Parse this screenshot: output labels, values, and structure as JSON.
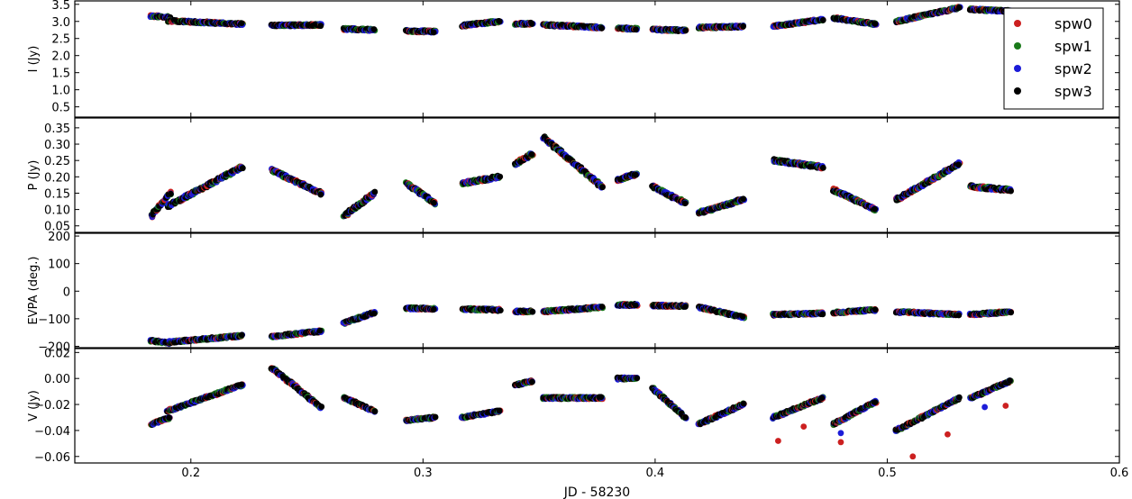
{
  "chart_data": {
    "type": "scatter",
    "xlabel": "JD - 58230",
    "xlim": [
      0.15,
      0.6
    ],
    "x_ticks": [
      "0.2",
      "0.3",
      "0.4",
      "0.5",
      "0.6"
    ],
    "legend": {
      "placement": "top-right",
      "entries": [
        {
          "name": "spw0",
          "color": "#cc2020"
        },
        {
          "name": "spw1",
          "color": "#1a7a1a"
        },
        {
          "name": "spw2",
          "color": "#1c1cd8"
        },
        {
          "name": "spw3",
          "color": "#000000"
        }
      ]
    },
    "panels": [
      {
        "ylabel": "I (Jy)",
        "ylim": [
          0.2,
          3.6
        ],
        "y_ticks": [
          "0.5",
          "1.0",
          "1.5",
          "2.0",
          "2.5",
          "3.0",
          "3.5"
        ],
        "segments": [
          {
            "x": [
              0.183,
              0.191
            ],
            "y": [
              3.16,
              3.12
            ]
          },
          {
            "x": [
              0.19,
              0.222
            ],
            "y": [
              3.02,
              2.92
            ]
          },
          {
            "x": [
              0.235,
              0.256
            ],
            "y": [
              2.88,
              2.9
            ]
          },
          {
            "x": [
              0.266,
              0.279
            ],
            "y": [
              2.78,
              2.75
            ]
          },
          {
            "x": [
              0.293,
              0.305
            ],
            "y": [
              2.72,
              2.7
            ]
          },
          {
            "x": [
              0.317,
              0.333
            ],
            "y": [
              2.88,
              3.0
            ]
          },
          {
            "x": [
              0.34,
              0.347
            ],
            "y": [
              2.92,
              2.94
            ]
          },
          {
            "x": [
              0.352,
              0.377
            ],
            "y": [
              2.9,
              2.82
            ]
          },
          {
            "x": [
              0.384,
              0.392
            ],
            "y": [
              2.8,
              2.78
            ]
          },
          {
            "x": [
              0.399,
              0.413
            ],
            "y": [
              2.76,
              2.74
            ]
          },
          {
            "x": [
              0.419,
              0.438
            ],
            "y": [
              2.82,
              2.85
            ]
          },
          {
            "x": [
              0.451,
              0.472
            ],
            "y": [
              2.86,
              3.05
            ]
          },
          {
            "x": [
              0.477,
              0.495
            ],
            "y": [
              3.1,
              2.92
            ]
          },
          {
            "x": [
              0.504,
              0.531
            ],
            "y": [
              3.0,
              3.4
            ]
          },
          {
            "x": [
              0.536,
              0.553
            ],
            "y": [
              3.35,
              3.3
            ]
          }
        ]
      },
      {
        "ylabel": "P (Jy)",
        "ylim": [
          0.03,
          0.38
        ],
        "y_ticks": [
          "0.05",
          "0.10",
          "0.15",
          "0.20",
          "0.25",
          "0.30",
          "0.35"
        ],
        "segments": [
          {
            "x": [
              0.183,
              0.191
            ],
            "y": [
              0.08,
              0.15
            ]
          },
          {
            "x": [
              0.19,
              0.222
            ],
            "y": [
              0.11,
              0.23
            ]
          },
          {
            "x": [
              0.235,
              0.256
            ],
            "y": [
              0.22,
              0.15
            ]
          },
          {
            "x": [
              0.266,
              0.279
            ],
            "y": [
              0.08,
              0.15
            ]
          },
          {
            "x": [
              0.293,
              0.305
            ],
            "y": [
              0.18,
              0.12
            ]
          },
          {
            "x": [
              0.317,
              0.333
            ],
            "y": [
              0.18,
              0.2
            ]
          },
          {
            "x": [
              0.34,
              0.347
            ],
            "y": [
              0.24,
              0.27
            ]
          },
          {
            "x": [
              0.352,
              0.377
            ],
            "y": [
              0.32,
              0.17
            ]
          },
          {
            "x": [
              0.384,
              0.392
            ],
            "y": [
              0.19,
              0.21
            ]
          },
          {
            "x": [
              0.399,
              0.413
            ],
            "y": [
              0.17,
              0.12
            ]
          },
          {
            "x": [
              0.419,
              0.438
            ],
            "y": [
              0.09,
              0.13
            ]
          },
          {
            "x": [
              0.451,
              0.472
            ],
            "y": [
              0.25,
              0.23
            ]
          },
          {
            "x": [
              0.477,
              0.495
            ],
            "y": [
              0.16,
              0.1
            ]
          },
          {
            "x": [
              0.504,
              0.531
            ],
            "y": [
              0.13,
              0.24
            ]
          },
          {
            "x": [
              0.536,
              0.553
            ],
            "y": [
              0.17,
              0.16
            ]
          }
        ]
      },
      {
        "ylabel": "EVPA (deg.)",
        "ylim": [
          -205,
          210
        ],
        "y_ticks": [
          "−200",
          "−100",
          "0",
          "100",
          "200"
        ],
        "segments": [
          {
            "x": [
              0.183,
              0.191
            ],
            "y": [
              -180,
              -188
            ]
          },
          {
            "x": [
              0.19,
              0.222
            ],
            "y": [
              -185,
              -162
            ]
          },
          {
            "x": [
              0.235,
              0.256
            ],
            "y": [
              -165,
              -145
            ]
          },
          {
            "x": [
              0.266,
              0.279
            ],
            "y": [
              -115,
              -78
            ]
          },
          {
            "x": [
              0.293,
              0.305
            ],
            "y": [
              -62,
              -64
            ]
          },
          {
            "x": [
              0.317,
              0.333
            ],
            "y": [
              -65,
              -68
            ]
          },
          {
            "x": [
              0.34,
              0.347
            ],
            "y": [
              -74,
              -74
            ]
          },
          {
            "x": [
              0.352,
              0.377
            ],
            "y": [
              -74,
              -58
            ]
          },
          {
            "x": [
              0.384,
              0.392
            ],
            "y": [
              -50,
              -50
            ]
          },
          {
            "x": [
              0.399,
              0.413
            ],
            "y": [
              -52,
              -54
            ]
          },
          {
            "x": [
              0.419,
              0.438
            ],
            "y": [
              -58,
              -95
            ]
          },
          {
            "x": [
              0.451,
              0.472
            ],
            "y": [
              -85,
              -80
            ]
          },
          {
            "x": [
              0.477,
              0.495
            ],
            "y": [
              -78,
              -68
            ]
          },
          {
            "x": [
              0.504,
              0.531
            ],
            "y": [
              -75,
              -85
            ]
          },
          {
            "x": [
              0.536,
              0.553
            ],
            "y": [
              -85,
              -75
            ]
          }
        ]
      },
      {
        "ylabel": "V (Jy)",
        "ylim": [
          -0.065,
          0.023
        ],
        "y_ticks": [
          "−0.06",
          "−0.04",
          "−0.02",
          "0.00",
          "0.02"
        ],
        "segments": [
          {
            "x": [
              0.183,
              0.191
            ],
            "y": [
              -0.035,
              -0.03
            ]
          },
          {
            "x": [
              0.19,
              0.222
            ],
            "y": [
              -0.025,
              -0.005
            ]
          },
          {
            "x": [
              0.235,
              0.256
            ],
            "y": [
              0.008,
              -0.022
            ]
          },
          {
            "x": [
              0.266,
              0.279
            ],
            "y": [
              -0.015,
              -0.025
            ]
          },
          {
            "x": [
              0.293,
              0.305
            ],
            "y": [
              -0.032,
              -0.03
            ]
          },
          {
            "x": [
              0.317,
              0.333
            ],
            "y": [
              -0.03,
              -0.025
            ]
          },
          {
            "x": [
              0.34,
              0.347
            ],
            "y": [
              -0.005,
              -0.002
            ]
          },
          {
            "x": [
              0.352,
              0.377
            ],
            "y": [
              -0.015,
              -0.015
            ]
          },
          {
            "x": [
              0.384,
              0.392
            ],
            "y": [
              0.0,
              0.0
            ]
          },
          {
            "x": [
              0.399,
              0.413
            ],
            "y": [
              -0.008,
              -0.03
            ]
          },
          {
            "x": [
              0.419,
              0.438
            ],
            "y": [
              -0.035,
              -0.02
            ]
          },
          {
            "x": [
              0.451,
              0.472
            ],
            "y": [
              -0.03,
              -0.015
            ]
          },
          {
            "x": [
              0.477,
              0.495
            ],
            "y": [
              -0.035,
              -0.018
            ]
          },
          {
            "x": [
              0.504,
              0.531
            ],
            "y": [
              -0.04,
              -0.015
            ]
          },
          {
            "x": [
              0.536,
              0.553
            ],
            "y": [
              -0.015,
              -0.002
            ]
          }
        ],
        "outliers": [
          {
            "x": 0.453,
            "y": -0.048,
            "color": "#cc2020"
          },
          {
            "x": 0.464,
            "y": -0.037,
            "color": "#cc2020"
          },
          {
            "x": 0.48,
            "y": -0.049,
            "color": "#cc2020"
          },
          {
            "x": 0.511,
            "y": -0.06,
            "color": "#cc2020"
          },
          {
            "x": 0.526,
            "y": -0.043,
            "color": "#cc2020"
          },
          {
            "x": 0.551,
            "y": -0.021,
            "color": "#cc2020"
          },
          {
            "x": 0.48,
            "y": -0.042,
            "color": "#1c1cd8"
          },
          {
            "x": 0.542,
            "y": -0.022,
            "color": "#1c1cd8"
          }
        ]
      }
    ]
  }
}
